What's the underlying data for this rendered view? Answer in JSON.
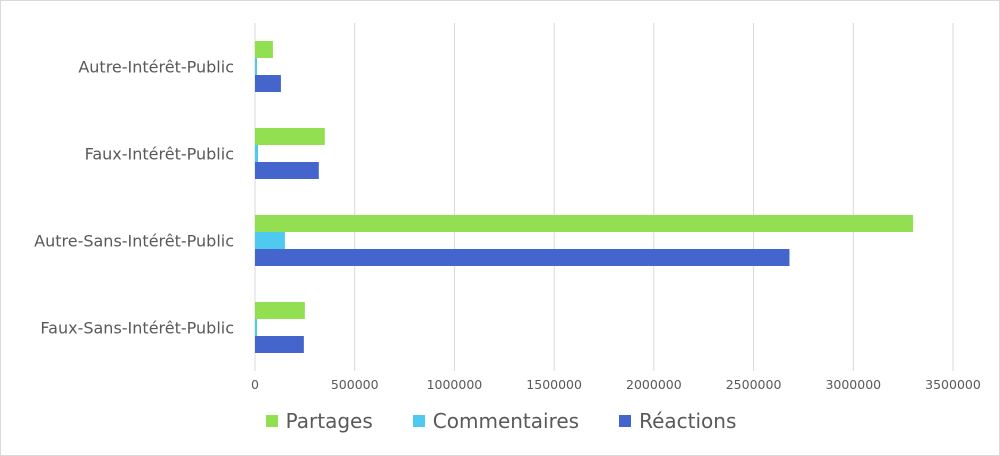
{
  "chart_data": {
    "type": "bar",
    "orientation": "horizontal",
    "categories": [
      "Autre-Intérêt-Public",
      "Faux-Intérêt-Public",
      "Autre-Sans-Intérêt-Public",
      "Faux-Sans-Intérêt-Public"
    ],
    "series": [
      {
        "name": "Partages",
        "color": "#92e051",
        "values": [
          90000,
          350000,
          3300000,
          250000
        ]
      },
      {
        "name": "Commentaires",
        "color": "#4ec9f0",
        "values": [
          10000,
          15000,
          150000,
          10000
        ]
      },
      {
        "name": "Réactions",
        "color": "#4466cc",
        "values": [
          130000,
          320000,
          2680000,
          245000
        ]
      }
    ],
    "xticks": [
      "0",
      "500000",
      "1000000",
      "1500000",
      "2000000",
      "2500000",
      "3000000",
      "3500000"
    ],
    "xlim": [
      0,
      3500000
    ],
    "grid": "vertical",
    "legend_position": "bottom",
    "title": "",
    "xlabel": "",
    "ylabel": ""
  }
}
